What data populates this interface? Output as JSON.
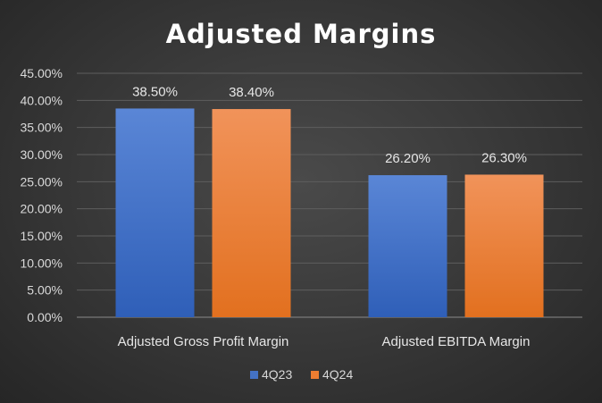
{
  "chart_data": {
    "type": "bar",
    "title": "Adjusted Margins",
    "categories": [
      "Adjusted Gross Profit Margin",
      "Adjusted EBITDA Margin"
    ],
    "series": [
      {
        "name": "4Q23",
        "values": [
          38.5,
          26.2
        ],
        "labels": [
          "38.50%",
          "26.20%"
        ],
        "color": "#4472C4"
      },
      {
        "name": "4Q24",
        "values": [
          38.4,
          26.3
        ],
        "labels": [
          "38.40%",
          "26.30%"
        ],
        "color": "#ED7D31"
      }
    ],
    "ylim": [
      0,
      45
    ],
    "yticks": [
      "0.00%",
      "5.00%",
      "10.00%",
      "15.00%",
      "20.00%",
      "25.00%",
      "30.00%",
      "35.00%",
      "40.00%",
      "45.00%"
    ],
    "grid": true,
    "legend_position": "bottom",
    "xlabel": "",
    "ylabel": ""
  }
}
